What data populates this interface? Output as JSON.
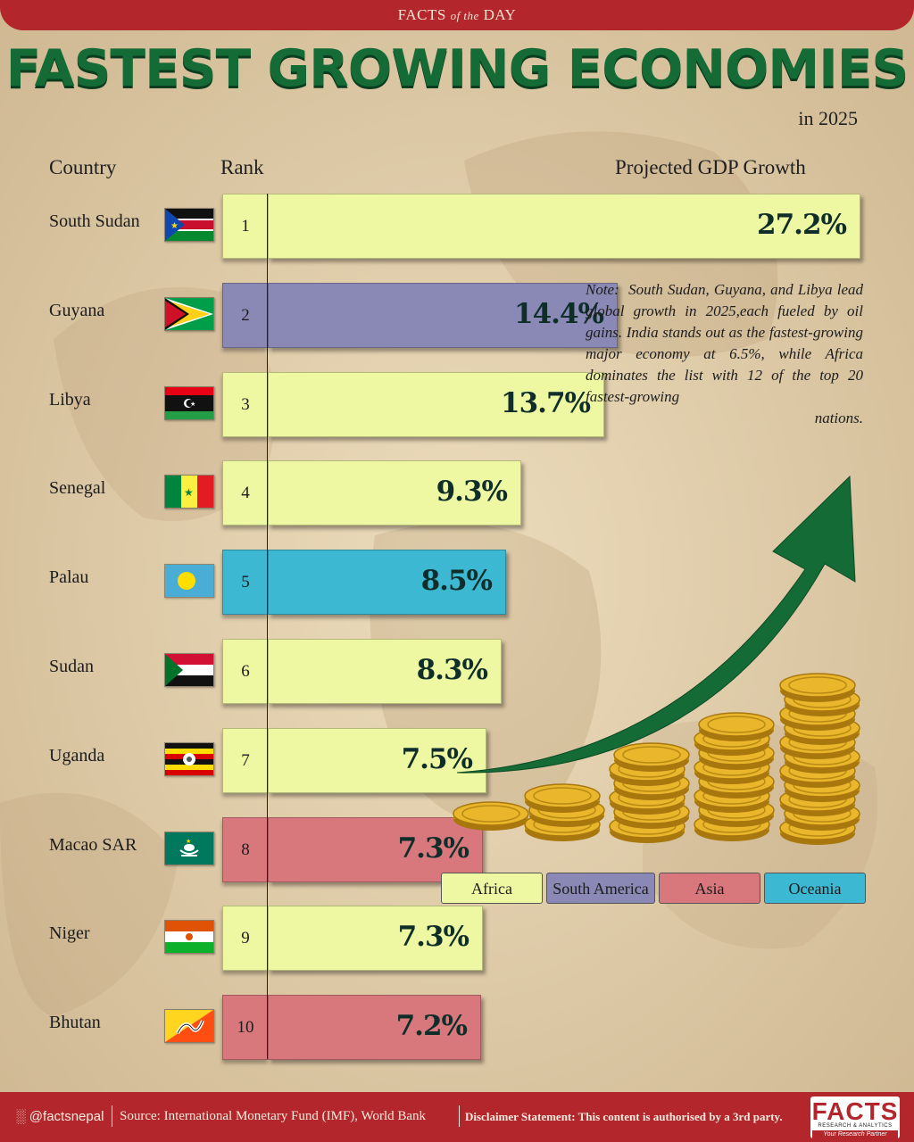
{
  "header": {
    "banner_prefix": "FACTS",
    "banner_italic": "of the",
    "banner_suffix": "DAY",
    "title": "FASTEST GROWING ECONOMIES",
    "subtitle": "in 2025"
  },
  "columns": {
    "country": "Country",
    "rank": "Rank",
    "growth": "Projected GDP Growth"
  },
  "colors": {
    "Africa": "#eef7a2",
    "South America": "#8a88b4",
    "Asia": "#d8777c",
    "Oceania": "#3cb8d3",
    "title_green": "#156b36",
    "banner_red": "#b3262b"
  },
  "chart_data": {
    "type": "bar",
    "orientation": "horizontal",
    "title": "FASTEST GROWING ECONOMIES",
    "subtitle": "in 2025",
    "ylabel": "Country",
    "xlabel": "Projected GDP Growth",
    "unit": "%",
    "xlim": [
      0,
      27.2
    ],
    "rows": [
      {
        "country": "South Sudan",
        "rank": "1",
        "value": 27.2,
        "label": "27.2%",
        "region": "Africa",
        "flag": "south-sudan-flag"
      },
      {
        "country": "Guyana",
        "rank": "2",
        "value": 14.4,
        "label": "14.4%",
        "region": "South America",
        "flag": "guyana-flag"
      },
      {
        "country": "Libya",
        "rank": "3",
        "value": 13.7,
        "label": "13.7%",
        "region": "Africa",
        "flag": "libya-flag"
      },
      {
        "country": "Senegal",
        "rank": "4",
        "value": 9.3,
        "label": "9.3%",
        "region": "Africa",
        "flag": "senegal-flag"
      },
      {
        "country": "Palau",
        "rank": "5",
        "value": 8.5,
        "label": "8.5%",
        "region": "Oceania",
        "flag": "palau-flag"
      },
      {
        "country": "Sudan",
        "rank": "6",
        "value": 8.3,
        "label": "8.3%",
        "region": "Africa",
        "flag": "sudan-flag"
      },
      {
        "country": "Uganda",
        "rank": "7",
        "value": 7.5,
        "label": "7.5%",
        "region": "Africa",
        "flag": "uganda-flag"
      },
      {
        "country": "Macao SAR",
        "rank": "8",
        "value": 7.3,
        "label": "7.3%",
        "region": "Asia",
        "flag": "macao-flag"
      },
      {
        "country": "Niger",
        "rank": "9",
        "value": 7.3,
        "label": "7.3%",
        "region": "Africa",
        "flag": "niger-flag"
      },
      {
        "country": "Bhutan",
        "rank": "10",
        "value": 7.2,
        "label": "7.2%",
        "region": "Asia",
        "flag": "bhutan-flag"
      }
    ],
    "legend": [
      "Africa",
      "South America",
      "Asia",
      "Oceania"
    ],
    "legend_position": "right"
  },
  "note": {
    "label": "Note:",
    "body": "South Sudan, Guyana, and Libya lead global growth in 2025,each fueled by oil gains. India stands out as the fastest-growing major economy at 6.5%, while Africa dominates the list with 12 of the top 20 fastest-growing",
    "last": "nations."
  },
  "footer": {
    "handle": "@factsnepal",
    "source": "Source: International Monetary Fund (IMF), World Bank",
    "disclaimer": "Disclaimer Statement: This content is authorised by a 3rd party."
  },
  "logo": {
    "text": "FACTS",
    "sub": "RESEARCH & ANALYTICS",
    "tagline": "Your Research Partner"
  }
}
